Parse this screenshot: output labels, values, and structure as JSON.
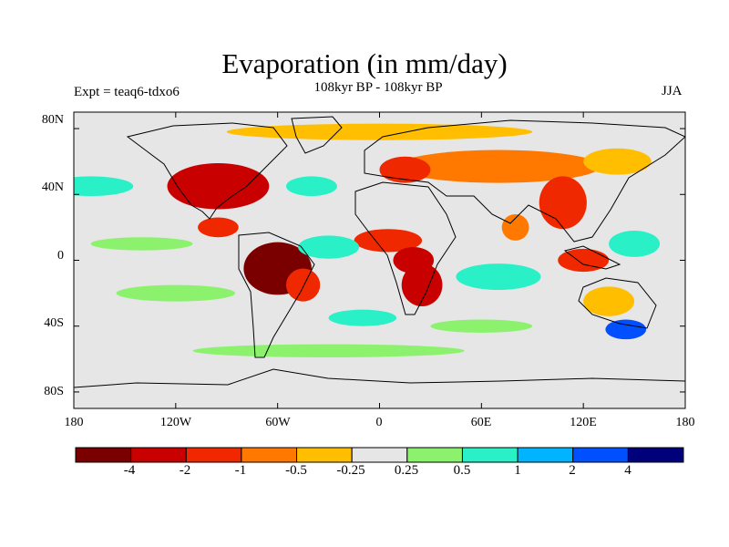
{
  "title": "Evaporation (in mm/day)",
  "subtitle": "108kyr BP - 108kyr BP",
  "left_label": "Expt = teaq6-tdxo6",
  "right_label": "JJA",
  "chart_data": {
    "type": "heatmap",
    "variable": "Evaporation difference",
    "units": "mm/day",
    "season": "JJA",
    "x_axis": {
      "ticks": [
        "180",
        "120W",
        "60W",
        "0",
        "60E",
        "120E",
        "180"
      ],
      "range": [
        -180,
        180
      ]
    },
    "y_axis": {
      "ticks": [
        "80N",
        "40N",
        "0",
        "40S",
        "80S"
      ],
      "range": [
        -90,
        90
      ]
    },
    "colorbar": {
      "labels": [
        "-4",
        "-2",
        "-1",
        "-0.5",
        "-0.25",
        "0.25",
        "0.5",
        "1",
        "2",
        "4"
      ],
      "colors": [
        "#7a0000",
        "#c80000",
        "#f02800",
        "#ff7800",
        "#ffbe00",
        "#e6e6e6",
        "#8cf26e",
        "#2af0c8",
        "#00b4ff",
        "#0050ff",
        "#00007a"
      ]
    },
    "anomalies": [
      {
        "region": "North America",
        "lon": -95,
        "lat": 45,
        "rx": 30,
        "ry": 14,
        "level": 1
      },
      {
        "region": "Mexico / Central America",
        "lon": -95,
        "lat": 20,
        "rx": 12,
        "ry": 6,
        "level": 2
      },
      {
        "region": "South America (Amazon)",
        "lon": -60,
        "lat": -5,
        "rx": 20,
        "ry": 16,
        "level": 0
      },
      {
        "region": "South America east",
        "lon": -45,
        "lat": -15,
        "rx": 10,
        "ry": 10,
        "level": 2
      },
      {
        "region": "Sahel / West Africa",
        "lon": 5,
        "lat": 12,
        "rx": 20,
        "ry": 7,
        "level": 2
      },
      {
        "region": "Central Africa",
        "lon": 20,
        "lat": 0,
        "rx": 12,
        "ry": 8,
        "level": 1
      },
      {
        "region": "Southern Africa",
        "lon": 25,
        "lat": -15,
        "rx": 12,
        "ry": 13,
        "level": 1
      },
      {
        "region": "Northern Eurasia",
        "lon": 70,
        "lat": 57,
        "rx": 60,
        "ry": 10,
        "level": 3
      },
      {
        "region": "Europe",
        "lon": 15,
        "lat": 55,
        "rx": 15,
        "ry": 8,
        "level": 2
      },
      {
        "region": "East Asia",
        "lon": 108,
        "lat": 35,
        "rx": 14,
        "ry": 16,
        "level": 2
      },
      {
        "region": "India",
        "lon": 80,
        "lat": 20,
        "rx": 8,
        "ry": 8,
        "level": 3
      },
      {
        "region": "Maritime Continent",
        "lon": 120,
        "lat": 0,
        "rx": 15,
        "ry": 7,
        "level": 2
      },
      {
        "region": "Australia",
        "lon": 135,
        "lat": -25,
        "rx": 15,
        "ry": 9,
        "level": 4
      },
      {
        "region": "Siberia east",
        "lon": 140,
        "lat": 60,
        "rx": 20,
        "ry": 8,
        "level": 4
      },
      {
        "region": "Tropical Atlantic",
        "lon": -30,
        "lat": 8,
        "rx": 18,
        "ry": 7,
        "level": 7
      },
      {
        "region": "Pacific ITCZ",
        "lon": -140,
        "lat": 10,
        "rx": 30,
        "ry": 4,
        "level": 6
      },
      {
        "region": "South Pacific",
        "lon": -120,
        "lat": -20,
        "rx": 35,
        "ry": 5,
        "level": 6
      },
      {
        "region": "Indian Ocean",
        "lon": 70,
        "lat": -10,
        "rx": 25,
        "ry": 8,
        "level": 7
      },
      {
        "region": "South of Australia",
        "lon": 145,
        "lat": -42,
        "rx": 12,
        "ry": 6,
        "level": 9
      },
      {
        "region": "Southern Ocean",
        "lon": -30,
        "lat": -55,
        "rx": 80,
        "ry": 4,
        "level": 6
      },
      {
        "region": "South Atlantic",
        "lon": -10,
        "lat": -35,
        "rx": 20,
        "ry": 5,
        "level": 7
      },
      {
        "region": "North Atlantic",
        "lon": -40,
        "lat": 45,
        "rx": 15,
        "ry": 6,
        "level": 7
      },
      {
        "region": "North Pacific",
        "lon": -170,
        "lat": 45,
        "rx": 25,
        "ry": 6,
        "level": 7
      },
      {
        "region": "Arctic",
        "lon": 0,
        "lat": 78,
        "rx": 90,
        "ry": 5,
        "level": 4
      },
      {
        "region": "Western Pacific",
        "lon": 150,
        "lat": 10,
        "rx": 15,
        "ry": 8,
        "level": 7
      },
      {
        "region": "Indian Ocean south",
        "lon": 60,
        "lat": -40,
        "rx": 30,
        "ry": 4,
        "level": 6
      }
    ]
  }
}
